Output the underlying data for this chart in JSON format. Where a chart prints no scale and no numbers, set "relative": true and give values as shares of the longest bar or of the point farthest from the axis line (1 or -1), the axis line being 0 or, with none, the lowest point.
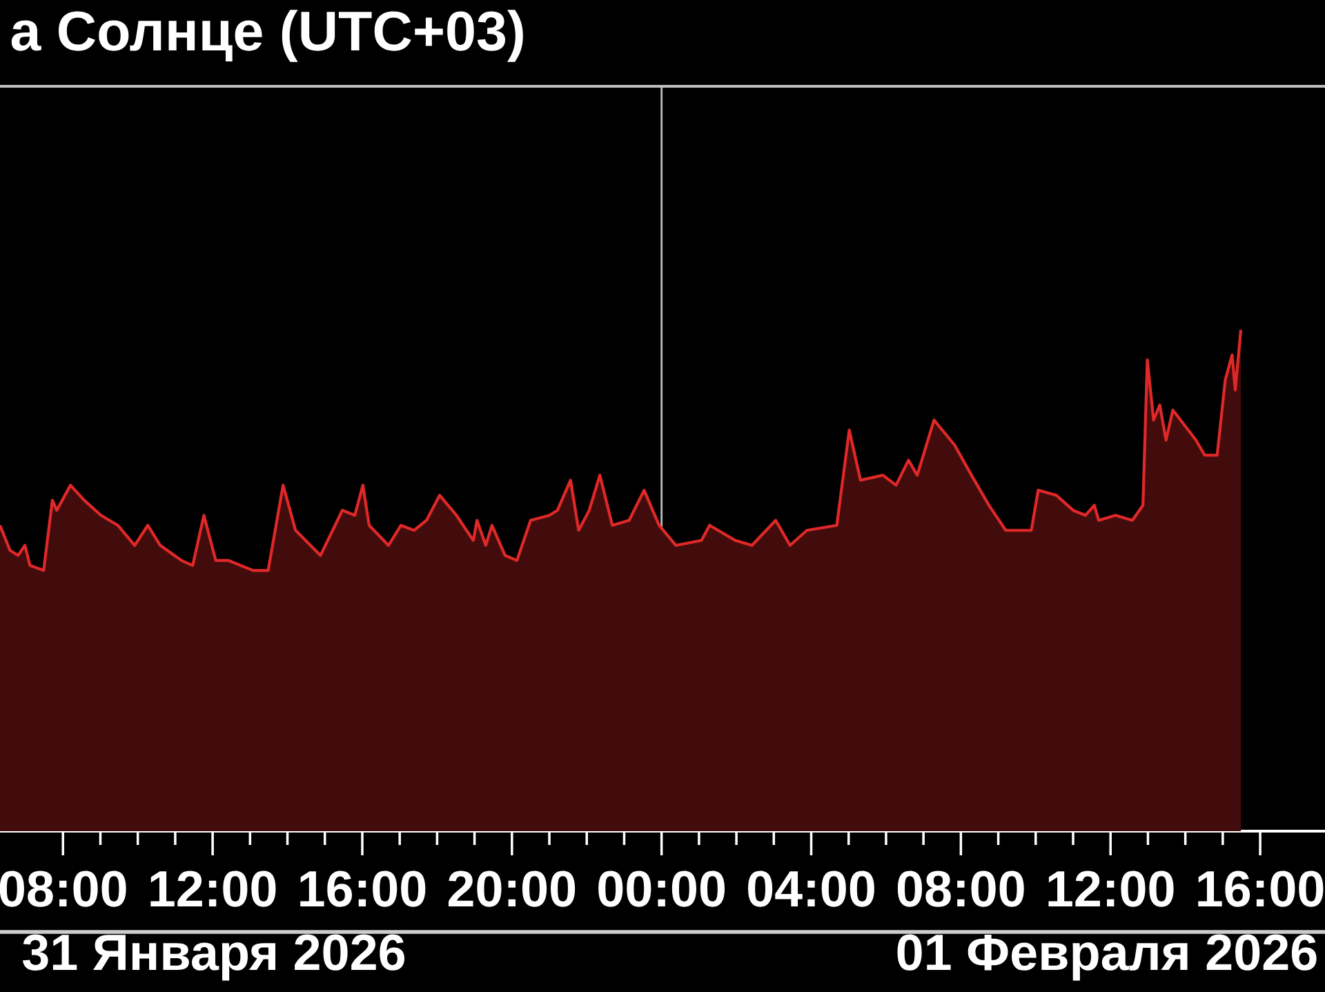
{
  "chart_data": {
    "type": "area",
    "title": "а Солнце (UTC+03)",
    "relative": true,
    "x": [
      "2026-01-31T06:19",
      "2026-01-31T06:35",
      "2026-01-31T06:48",
      "2026-01-31T06:59",
      "2026-01-31T07:07",
      "2026-01-31T07:29",
      "2026-01-31T07:43",
      "2026-01-31T07:50",
      "2026-01-31T08:12",
      "2026-01-31T08:34",
      "2026-01-31T09:01",
      "2026-01-31T09:28",
      "2026-01-31T09:55",
      "2026-01-31T10:16",
      "2026-01-31T10:36",
      "2026-01-31T11:10",
      "2026-01-31T11:28",
      "2026-01-31T11:46",
      "2026-01-31T12:05",
      "2026-01-31T12:25",
      "2026-01-31T13:05",
      "2026-01-31T13:29",
      "2026-01-31T13:53",
      "2026-01-31T14:13",
      "2026-01-31T14:53",
      "2026-01-31T15:28",
      "2026-01-31T15:48",
      "2026-01-31T16:01",
      "2026-01-31T16:11",
      "2026-01-31T16:42",
      "2026-01-31T17:02",
      "2026-01-31T17:23",
      "2026-01-31T17:43",
      "2026-01-31T18:04",
      "2026-01-31T18:31",
      "2026-01-31T18:58",
      "2026-01-31T19:04",
      "2026-01-31T19:18",
      "2026-01-31T19:28",
      "2026-01-31T19:49",
      "2026-01-31T20:08",
      "2026-01-31T20:30",
      "2026-01-31T21:00",
      "2026-01-31T21:13",
      "2026-01-31T21:34",
      "2026-01-31T21:47",
      "2026-01-31T22:04",
      "2026-01-31T22:21",
      "2026-01-31T22:41",
      "2026-01-31T23:08",
      "2026-01-31T23:32",
      "2026-01-31T23:56",
      "2026-02-01T00:23",
      "2026-02-01T01:04",
      "2026-02-01T01:17",
      "2026-02-01T01:58",
      "2026-02-01T02:25",
      "2026-02-01T03:03",
      "2026-02-01T03:26",
      "2026-02-01T03:53",
      "2026-02-01T04:41",
      "2026-02-01T05:01",
      "2026-02-01T05:19",
      "2026-02-01T05:55",
      "2026-02-01T06:16",
      "2026-02-01T06:36",
      "2026-02-01T06:50",
      "2026-02-01T07:17",
      "2026-02-01T07:50",
      "2026-02-01T08:17",
      "2026-02-01T08:45",
      "2026-02-01T09:12",
      "2026-02-01T09:53",
      "2026-02-01T10:04",
      "2026-02-01T10:33",
      "2026-02-01T11:00",
      "2026-02-01T11:20",
      "2026-02-01T11:34",
      "2026-02-01T11:41",
      "2026-02-01T12:08",
      "2026-02-01T12:35",
      "2026-02-01T12:52",
      "2026-02-01T12:59",
      "2026-02-01T13:09",
      "2026-02-01T13:19",
      "2026-02-01T13:29",
      "2026-02-01T13:40",
      "2026-02-01T14:17",
      "2026-02-01T14:31",
      "2026-02-01T14:51",
      "2026-02-01T15:04",
      "2026-02-01T15:15",
      "2026-02-01T15:20",
      "2026-02-01T15:29"
    ],
    "series": [
      {
        "color": "#e02828",
        "values": [
          0.61,
          0.56,
          0.55,
          0.57,
          0.53,
          0.52,
          0.66,
          0.64,
          0.69,
          0.66,
          0.63,
          0.61,
          0.57,
          0.61,
          0.57,
          0.54,
          0.53,
          0.63,
          0.54,
          0.54,
          0.52,
          0.52,
          0.69,
          0.6,
          0.55,
          0.64,
          0.63,
          0.69,
          0.61,
          0.57,
          0.61,
          0.6,
          0.62,
          0.67,
          0.63,
          0.58,
          0.62,
          0.57,
          0.61,
          0.55,
          0.54,
          0.62,
          0.63,
          0.64,
          0.7,
          0.6,
          0.64,
          0.71,
          0.61,
          0.62,
          0.68,
          0.61,
          0.57,
          0.58,
          0.61,
          0.58,
          0.57,
          0.62,
          0.57,
          0.6,
          0.61,
          0.8,
          0.7,
          0.71,
          0.69,
          0.74,
          0.71,
          0.82,
          0.77,
          0.71,
          0.65,
          0.6,
          0.6,
          0.68,
          0.67,
          0.64,
          0.63,
          0.65,
          0.62,
          0.63,
          0.62,
          0.65,
          0.94,
          0.82,
          0.85,
          0.78,
          0.84,
          0.78,
          0.75,
          0.75,
          0.9,
          0.95,
          0.88,
          1.0
        ]
      }
    ],
    "xlim": [
      "2026-01-31T06:19",
      "2026-02-01T17:44"
    ],
    "xticks": [
      {
        "value": "2026-01-31T08:00",
        "label": "08:00"
      },
      {
        "value": "2026-01-31T12:00",
        "label": "12:00"
      },
      {
        "value": "2026-01-31T16:00",
        "label": "16:00"
      },
      {
        "value": "2026-01-31T20:00",
        "label": "20:00"
      },
      {
        "value": "2026-02-01T00:00",
        "label": "00:00"
      },
      {
        "value": "2026-02-01T04:00",
        "label": "04:00"
      },
      {
        "value": "2026-02-01T08:00",
        "label": "08:00"
      },
      {
        "value": "2026-02-01T12:00",
        "label": "12:00"
      },
      {
        "value": "2026-02-01T16:00",
        "label": "16:00"
      }
    ],
    "ref_lines": [
      {
        "axis": "x",
        "value": "2026-02-01T00:00",
        "color": "#bbbbbb"
      }
    ],
    "annotations": [
      "31 Января 2026",
      "01 Февраля 2026"
    ]
  }
}
